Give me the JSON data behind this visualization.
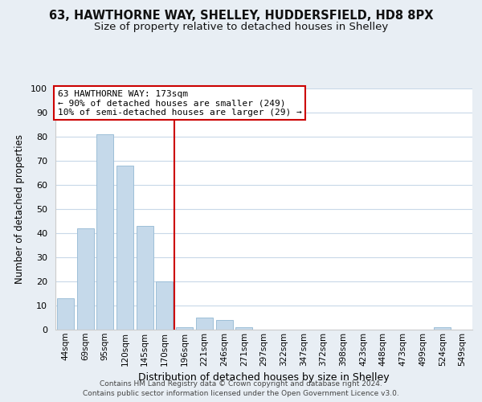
{
  "title": "63, HAWTHORNE WAY, SHELLEY, HUDDERSFIELD, HD8 8PX",
  "subtitle": "Size of property relative to detached houses in Shelley",
  "xlabel": "Distribution of detached houses by size in Shelley",
  "ylabel": "Number of detached properties",
  "bar_labels": [
    "44sqm",
    "69sqm",
    "95sqm",
    "120sqm",
    "145sqm",
    "170sqm",
    "196sqm",
    "221sqm",
    "246sqm",
    "271sqm",
    "297sqm",
    "322sqm",
    "347sqm",
    "372sqm",
    "398sqm",
    "423sqm",
    "448sqm",
    "473sqm",
    "499sqm",
    "524sqm",
    "549sqm"
  ],
  "bar_values": [
    13,
    42,
    81,
    68,
    43,
    20,
    1,
    5,
    4,
    1,
    0,
    0,
    0,
    0,
    0,
    0,
    0,
    0,
    0,
    1,
    0
  ],
  "bar_color": "#c5d9ea",
  "bar_edge_color": "#9dbfd8",
  "vline_x": 5.5,
  "vline_color": "#cc0000",
  "annotation_line1": "63 HAWTHORNE WAY: 173sqm",
  "annotation_line2": "← 90% of detached houses are smaller (249)",
  "annotation_line3": "10% of semi-detached houses are larger (29) →",
  "annotation_box_color": "#ffffff",
  "annotation_box_edge": "#cc0000",
  "ylim": [
    0,
    100
  ],
  "yticks": [
    0,
    10,
    20,
    30,
    40,
    50,
    60,
    70,
    80,
    90,
    100
  ],
  "footer_line1": "Contains HM Land Registry data © Crown copyright and database right 2024.",
  "footer_line2": "Contains public sector information licensed under the Open Government Licence v3.0.",
  "bg_color": "#e8eef4",
  "plot_bg_color": "#ffffff",
  "grid_color": "#c8d8e8",
  "title_fontsize": 10.5,
  "subtitle_fontsize": 9.5,
  "xlabel_fontsize": 9,
  "ylabel_fontsize": 8.5,
  "tick_fontsize": 8,
  "xtick_fontsize": 7.5
}
